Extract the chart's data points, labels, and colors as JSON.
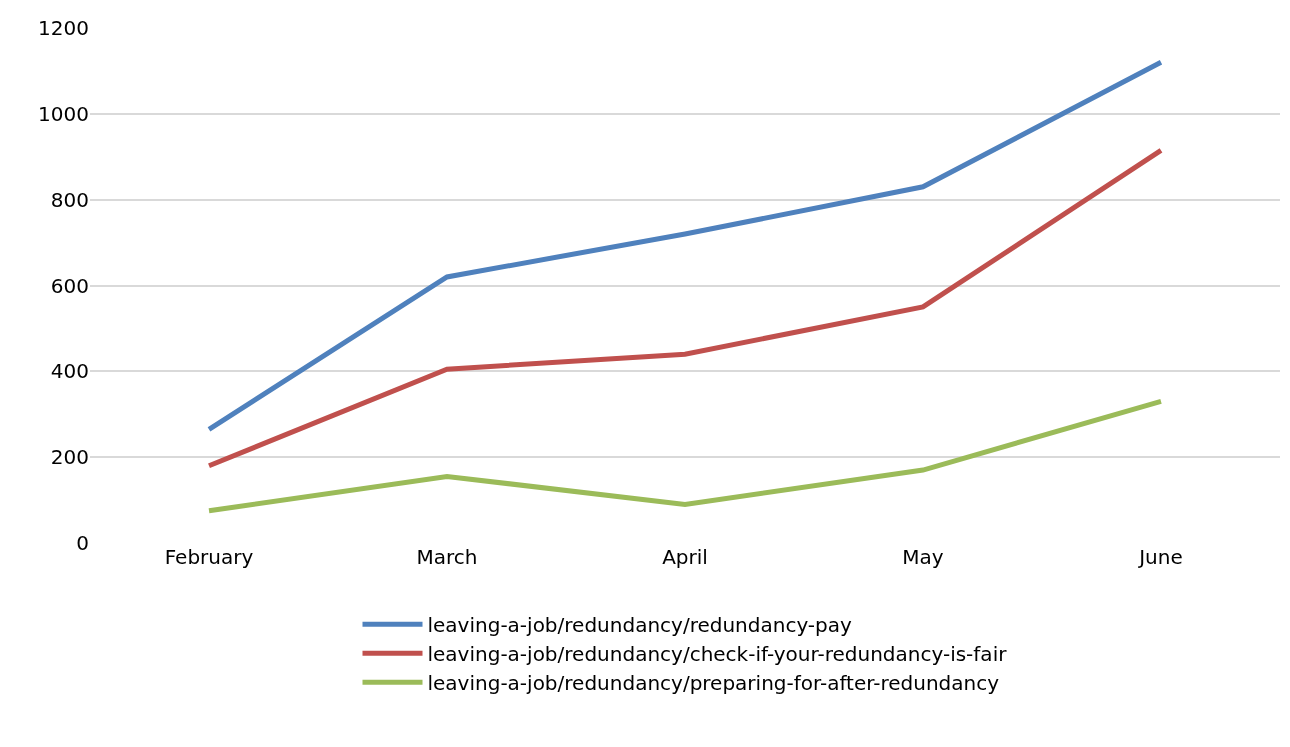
{
  "chart_data": {
    "type": "line",
    "categories": [
      "February",
      "March",
      "April",
      "May",
      "June"
    ],
    "series": [
      {
        "name": "leaving-a-job/redundancy/redundancy-pay",
        "color": "#4f81bd",
        "values": [
          265,
          620,
          720,
          830,
          1120
        ]
      },
      {
        "name": "leaving-a-job/redundancy/check-if-your-redundancy-is-fair",
        "color": "#c0504d",
        "values": [
          180,
          405,
          440,
          550,
          915
        ]
      },
      {
        "name": "leaving-a-job/redundancy/preparing-for-after-redundancy",
        "color": "#9bbb59",
        "values": [
          75,
          155,
          90,
          170,
          330
        ]
      }
    ],
    "ylim": [
      0,
      1200
    ],
    "yticks": [
      0,
      200,
      400,
      600,
      800,
      1000,
      1200
    ],
    "grid": "y",
    "legend": "bottom",
    "marker": "none",
    "line_style": "solid"
  }
}
